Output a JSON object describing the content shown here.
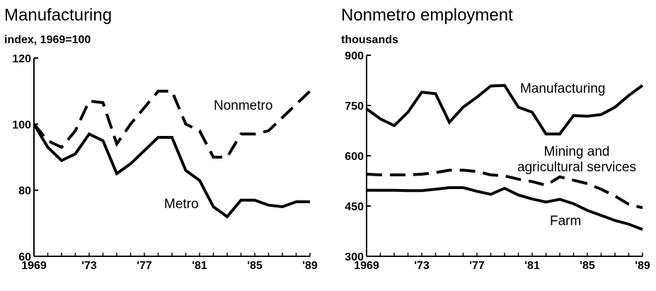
{
  "chart_data": [
    {
      "type": "line",
      "title": "Manufacturing",
      "ylabel": "index, 1969=100",
      "x": [
        1969,
        1970,
        1971,
        1972,
        1973,
        1974,
        1975,
        1976,
        1977,
        1978,
        1979,
        1980,
        1981,
        1982,
        1983,
        1984,
        1985,
        1986,
        1987,
        1988,
        1989
      ],
      "xticks": [
        "1969",
        "'73",
        "'77",
        "'81",
        "'85",
        "'89"
      ],
      "xtick_values": [
        1969,
        1973,
        1977,
        1981,
        1985,
        1989
      ],
      "ylim": [
        60,
        120
      ],
      "yticks": [
        60,
        80,
        100,
        120
      ],
      "series": [
        {
          "name": "Metro",
          "style": "solid",
          "values": [
            100,
            93,
            89,
            91,
            97,
            95,
            85,
            88,
            92,
            96,
            96,
            86,
            83,
            75,
            72,
            77,
            77,
            75.5,
            75,
            76.5,
            76.5
          ]
        },
        {
          "name": "Nonmetro",
          "style": "dashed",
          "values": [
            100,
            95,
            93,
            98,
            107,
            106.5,
            94,
            100,
            105,
            110,
            110,
            100,
            98,
            90,
            90,
            97,
            97,
            98,
            102,
            106,
            110
          ]
        }
      ]
    },
    {
      "type": "line",
      "title": "Nonmetro employment",
      "ylabel": "thousands",
      "x": [
        1969,
        1970,
        1971,
        1972,
        1973,
        1974,
        1975,
        1976,
        1977,
        1978,
        1979,
        1980,
        1981,
        1982,
        1983,
        1984,
        1985,
        1986,
        1987,
        1988,
        1989
      ],
      "xticks": [
        "1969",
        "'73",
        "'77",
        "'81",
        "'85",
        "'89"
      ],
      "xtick_values": [
        1969,
        1973,
        1977,
        1981,
        1985,
        1989
      ],
      "ylim": [
        300,
        900
      ],
      "yticks": [
        300,
        450,
        600,
        750,
        900
      ],
      "series": [
        {
          "name": "Manufacturing",
          "style": "solid",
          "values": [
            740,
            710,
            690,
            730,
            790,
            785,
            700,
            745,
            775,
            808,
            810,
            745,
            730,
            665,
            665,
            720,
            718,
            723,
            745,
            780,
            810
          ]
        },
        {
          "name": "Mining and agricultural services",
          "style": "dashed",
          "values": [
            545,
            543,
            543,
            543,
            545,
            550,
            557,
            557,
            553,
            543,
            540,
            530,
            523,
            512,
            537,
            527,
            517,
            500,
            480,
            455,
            445
          ]
        },
        {
          "name": "Farm",
          "style": "solid",
          "values": [
            497,
            497,
            497,
            496,
            496,
            500,
            505,
            505,
            494,
            485,
            503,
            483,
            471,
            462,
            470,
            457,
            437,
            422,
            407,
            396,
            380
          ]
        }
      ]
    }
  ]
}
